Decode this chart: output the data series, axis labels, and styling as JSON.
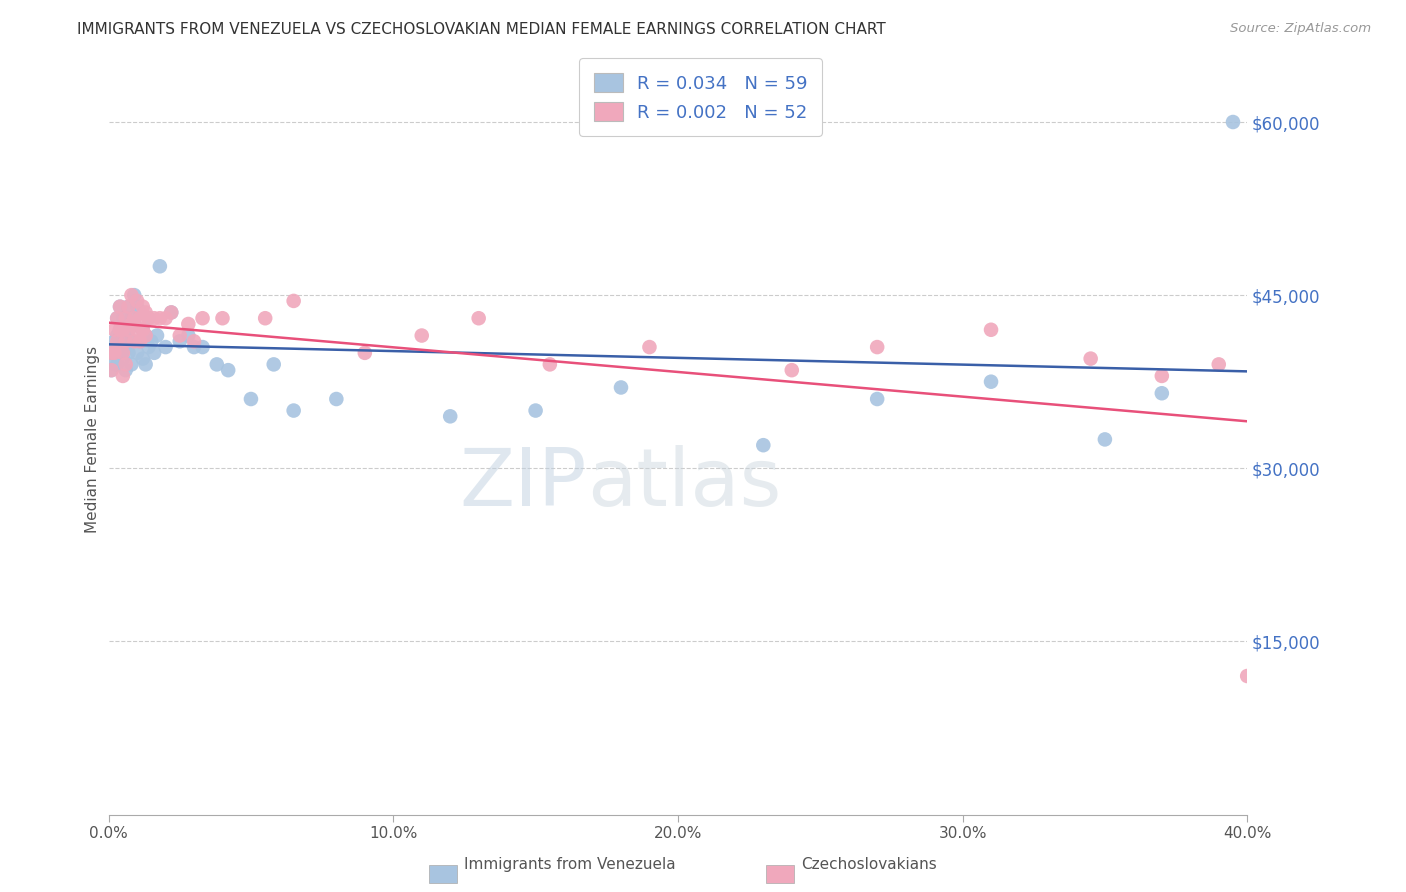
{
  "title": "IMMIGRANTS FROM VENEZUELA VS CZECHOSLOVAKIAN MEDIAN FEMALE EARNINGS CORRELATION CHART",
  "source": "Source: ZipAtlas.com",
  "ylabel": "Median Female Earnings",
  "blue_color": "#a8c4e0",
  "pink_color": "#f0a8bc",
  "blue_line_color": "#3a5fa8",
  "pink_line_color": "#e8507a",
  "tick_color_right": "#4472c4",
  "watermark_color": "#c8d8ea",
  "legend_blue_label": "R = 0.034   N = 59",
  "legend_pink_label": "R = 0.002   N = 52",
  "bottom_legend_blue": "Immigrants from Venezuela",
  "bottom_legend_pink": "Czechoslovakians",
  "blue_x": [
    0.001,
    0.001,
    0.002,
    0.002,
    0.003,
    0.003,
    0.003,
    0.004,
    0.004,
    0.004,
    0.005,
    0.005,
    0.005,
    0.006,
    0.006,
    0.006,
    0.007,
    0.007,
    0.007,
    0.008,
    0.008,
    0.008,
    0.009,
    0.009,
    0.01,
    0.01,
    0.011,
    0.011,
    0.012,
    0.012,
    0.013,
    0.013,
    0.014,
    0.014,
    0.015,
    0.016,
    0.017,
    0.018,
    0.02,
    0.022,
    0.025,
    0.028,
    0.03,
    0.033,
    0.038,
    0.042,
    0.05,
    0.058,
    0.065,
    0.08,
    0.12,
    0.15,
    0.18,
    0.23,
    0.27,
    0.31,
    0.35,
    0.37,
    0.395
  ],
  "blue_y": [
    40000,
    38500,
    41000,
    39000,
    43000,
    41500,
    39000,
    44000,
    42000,
    40000,
    43000,
    41000,
    39500,
    42000,
    40500,
    38500,
    44000,
    42000,
    40000,
    43000,
    41000,
    39000,
    45000,
    42500,
    44000,
    40000,
    43500,
    41000,
    42000,
    39500,
    41500,
    39000,
    43000,
    40500,
    41000,
    40000,
    41500,
    47500,
    40500,
    43500,
    41000,
    41500,
    40500,
    40500,
    39000,
    38500,
    36000,
    39000,
    35000,
    36000,
    34500,
    35000,
    37000,
    32000,
    36000,
    37500,
    32500,
    36500,
    60000
  ],
  "pink_x": [
    0.001,
    0.001,
    0.002,
    0.002,
    0.003,
    0.003,
    0.004,
    0.004,
    0.005,
    0.005,
    0.005,
    0.006,
    0.006,
    0.006,
    0.007,
    0.007,
    0.008,
    0.008,
    0.009,
    0.009,
    0.01,
    0.01,
    0.011,
    0.011,
    0.012,
    0.012,
    0.013,
    0.013,
    0.014,
    0.016,
    0.018,
    0.02,
    0.022,
    0.025,
    0.028,
    0.03,
    0.033,
    0.04,
    0.055,
    0.065,
    0.09,
    0.11,
    0.13,
    0.155,
    0.19,
    0.24,
    0.27,
    0.31,
    0.345,
    0.37,
    0.39,
    0.4
  ],
  "pink_y": [
    40000,
    38500,
    42000,
    40000,
    43000,
    41000,
    44000,
    42000,
    42000,
    40000,
    38000,
    43000,
    41000,
    39000,
    44000,
    42000,
    45000,
    42500,
    43000,
    41000,
    44500,
    42000,
    43000,
    41000,
    44000,
    42000,
    43500,
    41500,
    43000,
    43000,
    43000,
    43000,
    43500,
    41500,
    42500,
    41000,
    43000,
    43000,
    43000,
    44500,
    40000,
    41500,
    43000,
    39000,
    40500,
    38500,
    40500,
    42000,
    39500,
    38000,
    39000,
    12000
  ],
  "xlim": [
    0,
    0.4
  ],
  "ylim": [
    0,
    65000
  ],
  "yticks": [
    15000,
    30000,
    45000,
    60000
  ],
  "ytick_labels": [
    "$15,000",
    "$30,000",
    "$45,000",
    "$60,000"
  ],
  "xticks": [
    0.0,
    0.1,
    0.2,
    0.3,
    0.4
  ],
  "xtick_labels": [
    "0.0%",
    "10.0%",
    "20.0%",
    "30.0%",
    "40.0%"
  ]
}
